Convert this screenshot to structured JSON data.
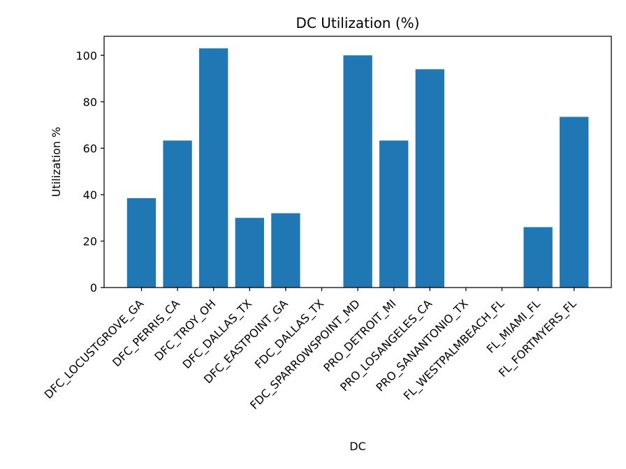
{
  "chart_data": {
    "type": "bar",
    "title": "DC Utilization (%)",
    "xlabel": "DC",
    "ylabel": "Utilization %",
    "categories": [
      "DFC_LOCUSTGROVE_GA",
      "DFC_PERRIS_CA",
      "DFC_TROY_OH",
      "DFC_DALLAS_TX",
      "DFC_EASTPOINT_GA",
      "FDC_DALLAS_TX",
      "FDC_SPARROWSPOINT_MD",
      "PRO_DETROIT_MI",
      "PRO_LOSANGELES_CA",
      "PRO_SANANTONIO_TX",
      "FL_WESTPALMBEACH_FL",
      "FL_MIAMI_FL",
      "FL_FORTMYERS_FL"
    ],
    "values": [
      38.5,
      63.3,
      103.0,
      30.0,
      32.0,
      0,
      100.0,
      63.3,
      94.0,
      0,
      0,
      26.0,
      73.5
    ],
    "ylim": [
      0,
      108.2
    ],
    "yticks": [
      0,
      20,
      40,
      60,
      80,
      100
    ],
    "grid": false,
    "bar_color": "#1f77b4"
  }
}
